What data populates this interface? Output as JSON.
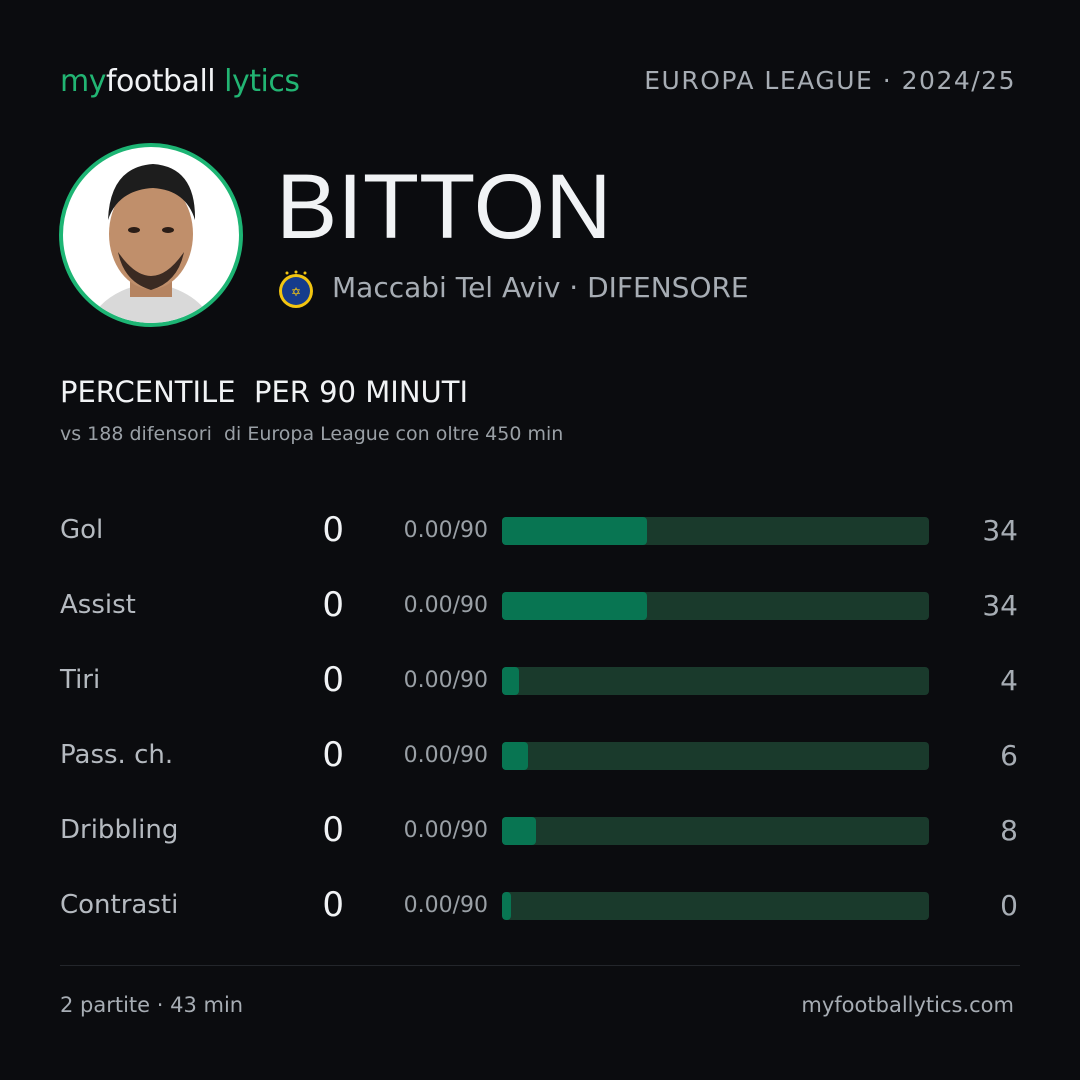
{
  "header": {
    "logo": [
      "my",
      "football",
      "lytics"
    ],
    "competition": "EUROPA LEAGUE · 2024/25"
  },
  "player": {
    "name": "BITTON",
    "team_role": "Maccabi Tel Aviv · DIFENSORE"
  },
  "section": {
    "title": "PERCENTILE  PER 90 MINUTI",
    "subtitle": "vs 188 difensori  di Europa League con oltre 450 min"
  },
  "rows": [
    {
      "label": "Gol",
      "total": 0,
      "per90": "0.00/90",
      "percentile": 34
    },
    {
      "label": "Assist",
      "total": 0,
      "per90": "0.00/90",
      "percentile": 34
    },
    {
      "label": "Tiri",
      "total": 0,
      "per90": "0.00/90",
      "percentile": 4
    },
    {
      "label": "Pass. ch.",
      "total": 0,
      "per90": "0.00/90",
      "percentile": 6
    },
    {
      "label": "Dribbling",
      "total": 0,
      "per90": "0.00/90",
      "percentile": 8
    },
    {
      "label": "Contrasti",
      "total": 0,
      "per90": "0.00/90",
      "percentile": 0
    }
  ],
  "footer": {
    "left": "2 partite · 43 min",
    "right": "myfootballytics.com"
  }
}
